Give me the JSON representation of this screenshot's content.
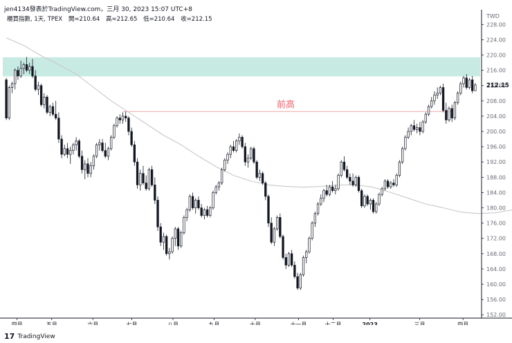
{
  "header": {
    "author_line": "jen4134發表於TradingView.com，三月 30, 2023 15:07 UTC+8"
  },
  "legend": {
    "symbol": "櫃買指數, 1天, TPEX",
    "open_label": "開=210.64",
    "high_label": "高=212.65",
    "low_label": "低=210.64",
    "close_label": "收=212.15"
  },
  "footer": {
    "logo_glyph": "𝟭𝟳",
    "brand": "TradingView"
  },
  "colors": {
    "up": "#131722",
    "down": "#131722",
    "zone": "#c7ebe3",
    "resistance_line": "#f0a3a8",
    "annotation": "#e8636e",
    "ma": "#c8c8c8",
    "axis_text": "#6a6d78"
  },
  "chart_data": {
    "type": "candlestick",
    "currency_label": "TWD",
    "current_price_label": "212.15",
    "y_ticks": [
      228,
      224,
      220,
      216,
      212,
      208,
      204,
      200,
      196,
      192,
      188,
      184,
      180,
      176,
      172,
      168,
      164,
      160,
      156,
      152
    ],
    "ylim": [
      151.5,
      231.5
    ],
    "x_ticks": [
      "四月",
      "五月",
      "六月",
      "七月",
      "八月",
      "九月",
      "十月",
      "十一月",
      "十二月",
      "2023",
      "三月",
      "四月"
    ],
    "annotation": {
      "text": "前高",
      "price": 205.2
    },
    "zone": {
      "top": 219.4,
      "bottom": 214.4
    },
    "ma_series": [
      [
        0,
        224.5
      ],
      [
        6,
        222.5
      ],
      [
        12,
        219.8
      ],
      [
        18,
        217.5
      ],
      [
        24,
        215
      ],
      [
        30,
        211.5
      ],
      [
        36,
        208
      ],
      [
        42,
        205
      ],
      [
        48,
        202
      ],
      [
        54,
        199
      ],
      [
        60,
        196.5
      ],
      [
        66,
        193.5
      ],
      [
        72,
        190.8
      ],
      [
        78,
        188.5
      ],
      [
        84,
        187
      ],
      [
        90,
        186
      ],
      [
        96,
        185.6
      ],
      [
        102,
        185.4
      ],
      [
        108,
        185.6
      ],
      [
        114,
        186
      ],
      [
        120,
        186
      ],
      [
        126,
        185.4
      ],
      [
        132,
        184
      ],
      [
        138,
        182.5
      ],
      [
        144,
        181
      ],
      [
        150,
        180
      ],
      [
        156,
        178.9
      ],
      [
        162,
        178.5
      ],
      [
        168,
        178.7
      ],
      [
        174,
        179.5
      ],
      [
        180,
        181
      ],
      [
        186,
        183.5
      ],
      [
        192,
        186.5
      ],
      [
        198,
        189.5
      ],
      [
        204,
        192.3
      ],
      [
        210,
        194.5
      ],
      [
        214,
        196
      ],
      [
        218,
        197.5
      ],
      [
        222,
        199.5
      ]
    ],
    "candles": [
      {
        "o": 213.5,
        "h": 214.0,
        "l": 203.0,
        "c": 203.5
      },
      {
        "o": 203.5,
        "h": 212.0,
        "l": 203.0,
        "c": 211.5
      },
      {
        "o": 211.5,
        "h": 213.0,
        "l": 210.0,
        "c": 212.5
      },
      {
        "o": 212.5,
        "h": 216.5,
        "l": 211.0,
        "c": 216.0
      },
      {
        "o": 216.0,
        "h": 217.0,
        "l": 213.5,
        "c": 214.5
      },
      {
        "o": 214.5,
        "h": 218.5,
        "l": 214.0,
        "c": 216.5
      },
      {
        "o": 216.5,
        "h": 218.0,
        "l": 215.0,
        "c": 217.5
      },
      {
        "o": 217.5,
        "h": 219.5,
        "l": 215.5,
        "c": 216.0
      },
      {
        "o": 216.0,
        "h": 218.0,
        "l": 215.0,
        "c": 217.0
      },
      {
        "o": 217.0,
        "h": 219.0,
        "l": 214.0,
        "c": 214.5
      },
      {
        "o": 214.5,
        "h": 216.0,
        "l": 210.5,
        "c": 211.0
      },
      {
        "o": 211.0,
        "h": 213.0,
        "l": 209.5,
        "c": 212.0
      },
      {
        "o": 212.0,
        "h": 212.5,
        "l": 206.5,
        "c": 207.0
      },
      {
        "o": 207.0,
        "h": 210.0,
        "l": 206.0,
        "c": 209.0
      },
      {
        "o": 209.0,
        "h": 209.5,
        "l": 204.5,
        "c": 205.0
      },
      {
        "o": 205.0,
        "h": 207.0,
        "l": 204.0,
        "c": 206.5
      },
      {
        "o": 206.5,
        "h": 207.5,
        "l": 204.0,
        "c": 204.5
      },
      {
        "o": 204.5,
        "h": 208.0,
        "l": 203.0,
        "c": 203.5
      },
      {
        "o": 203.5,
        "h": 205.0,
        "l": 197.0,
        "c": 198.0
      },
      {
        "o": 198.0,
        "h": 199.0,
        "l": 193.0,
        "c": 194.0
      },
      {
        "o": 194.0,
        "h": 196.5,
        "l": 193.5,
        "c": 195.5
      },
      {
        "o": 195.5,
        "h": 197.0,
        "l": 193.0,
        "c": 194.0
      },
      {
        "o": 194.0,
        "h": 196.0,
        "l": 191.5,
        "c": 195.0
      },
      {
        "o": 195.0,
        "h": 197.0,
        "l": 194.0,
        "c": 196.5
      },
      {
        "o": 196.5,
        "h": 198.5,
        "l": 195.0,
        "c": 197.5
      },
      {
        "o": 197.5,
        "h": 198.0,
        "l": 193.0,
        "c": 193.5
      },
      {
        "o": 193.5,
        "h": 195.0,
        "l": 189.0,
        "c": 190.0
      },
      {
        "o": 190.0,
        "h": 192.5,
        "l": 187.5,
        "c": 191.5
      },
      {
        "o": 191.5,
        "h": 193.0,
        "l": 188.0,
        "c": 189.0
      },
      {
        "o": 189.0,
        "h": 192.0,
        "l": 188.0,
        "c": 191.0
      },
      {
        "o": 191.0,
        "h": 194.0,
        "l": 190.0,
        "c": 193.5
      },
      {
        "o": 193.5,
        "h": 197.0,
        "l": 193.0,
        "c": 196.5
      },
      {
        "o": 196.5,
        "h": 198.0,
        "l": 195.0,
        "c": 197.0
      },
      {
        "o": 197.0,
        "h": 198.0,
        "l": 194.5,
        "c": 195.0
      },
      {
        "o": 195.0,
        "h": 197.0,
        "l": 193.0,
        "c": 193.5
      },
      {
        "o": 193.5,
        "h": 196.0,
        "l": 192.5,
        "c": 195.5
      },
      {
        "o": 195.5,
        "h": 199.0,
        "l": 195.0,
        "c": 198.5
      },
      {
        "o": 198.5,
        "h": 202.0,
        "l": 198.0,
        "c": 201.5
      },
      {
        "o": 201.5,
        "h": 204.0,
        "l": 201.0,
        "c": 203.5
      },
      {
        "o": 203.5,
        "h": 204.5,
        "l": 202.0,
        "c": 203.0
      },
      {
        "o": 203.0,
        "h": 205.0,
        "l": 202.0,
        "c": 204.0
      },
      {
        "o": 204.0,
        "h": 205.2,
        "l": 202.5,
        "c": 203.5
      },
      {
        "o": 203.5,
        "h": 204.0,
        "l": 199.0,
        "c": 200.0
      },
      {
        "o": 200.0,
        "h": 201.0,
        "l": 196.0,
        "c": 196.5
      },
      {
        "o": 196.5,
        "h": 197.5,
        "l": 191.0,
        "c": 192.0
      },
      {
        "o": 192.0,
        "h": 193.0,
        "l": 185.0,
        "c": 186.0
      },
      {
        "o": 186.0,
        "h": 190.0,
        "l": 184.5,
        "c": 189.0
      },
      {
        "o": 189.0,
        "h": 191.0,
        "l": 186.0,
        "c": 186.5
      },
      {
        "o": 186.5,
        "h": 188.5,
        "l": 184.5,
        "c": 185.0
      },
      {
        "o": 185.0,
        "h": 190.5,
        "l": 184.5,
        "c": 190.0
      },
      {
        "o": 190.0,
        "h": 191.0,
        "l": 185.5,
        "c": 186.0
      },
      {
        "o": 186.0,
        "h": 188.0,
        "l": 181.0,
        "c": 182.0
      },
      {
        "o": 182.0,
        "h": 183.0,
        "l": 174.0,
        "c": 175.0
      },
      {
        "o": 175.0,
        "h": 176.0,
        "l": 170.0,
        "c": 171.0
      },
      {
        "o": 171.0,
        "h": 173.5,
        "l": 169.0,
        "c": 172.5
      },
      {
        "o": 172.5,
        "h": 173.0,
        "l": 167.5,
        "c": 168.0
      },
      {
        "o": 168.0,
        "h": 169.5,
        "l": 166.5,
        "c": 168.5
      },
      {
        "o": 168.5,
        "h": 172.5,
        "l": 168.0,
        "c": 172.0
      },
      {
        "o": 172.0,
        "h": 175.0,
        "l": 170.0,
        "c": 174.5
      },
      {
        "o": 174.5,
        "h": 175.0,
        "l": 169.0,
        "c": 170.0
      },
      {
        "o": 170.0,
        "h": 174.0,
        "l": 169.5,
        "c": 173.5
      },
      {
        "o": 173.5,
        "h": 178.0,
        "l": 173.0,
        "c": 177.5
      },
      {
        "o": 177.5,
        "h": 180.0,
        "l": 176.5,
        "c": 179.5
      },
      {
        "o": 179.5,
        "h": 183.5,
        "l": 179.0,
        "c": 183.0
      },
      {
        "o": 183.0,
        "h": 184.0,
        "l": 179.5,
        "c": 180.0
      },
      {
        "o": 180.0,
        "h": 182.5,
        "l": 178.5,
        "c": 182.0
      },
      {
        "o": 182.0,
        "h": 183.0,
        "l": 179.5,
        "c": 180.0
      },
      {
        "o": 180.0,
        "h": 181.0,
        "l": 177.5,
        "c": 178.0
      },
      {
        "o": 178.0,
        "h": 180.0,
        "l": 177.0,
        "c": 179.5
      },
      {
        "o": 179.5,
        "h": 180.5,
        "l": 177.5,
        "c": 178.0
      },
      {
        "o": 178.0,
        "h": 180.5,
        "l": 177.5,
        "c": 180.0
      },
      {
        "o": 180.0,
        "h": 184.5,
        "l": 179.5,
        "c": 184.0
      },
      {
        "o": 184.0,
        "h": 186.0,
        "l": 183.5,
        "c": 185.5
      },
      {
        "o": 185.5,
        "h": 187.0,
        "l": 184.5,
        "c": 186.5
      },
      {
        "o": 186.5,
        "h": 190.5,
        "l": 186.0,
        "c": 190.0
      },
      {
        "o": 190.0,
        "h": 193.0,
        "l": 189.5,
        "c": 192.5
      },
      {
        "o": 192.5,
        "h": 194.5,
        "l": 191.5,
        "c": 194.0
      },
      {
        "o": 194.0,
        "h": 196.5,
        "l": 193.0,
        "c": 196.0
      },
      {
        "o": 196.0,
        "h": 197.5,
        "l": 194.5,
        "c": 195.0
      },
      {
        "o": 195.0,
        "h": 198.0,
        "l": 194.5,
        "c": 197.5
      },
      {
        "o": 197.5,
        "h": 199.5,
        "l": 196.5,
        "c": 198.5
      },
      {
        "o": 198.5,
        "h": 199.0,
        "l": 195.5,
        "c": 196.0
      },
      {
        "o": 196.0,
        "h": 197.0,
        "l": 191.0,
        "c": 192.0
      },
      {
        "o": 192.0,
        "h": 194.0,
        "l": 190.5,
        "c": 193.0
      },
      {
        "o": 193.0,
        "h": 196.0,
        "l": 192.5,
        "c": 195.5
      },
      {
        "o": 195.5,
        "h": 196.0,
        "l": 191.5,
        "c": 192.0
      },
      {
        "o": 192.0,
        "h": 192.5,
        "l": 187.5,
        "c": 188.0
      },
      {
        "o": 188.0,
        "h": 190.0,
        "l": 187.0,
        "c": 189.0
      },
      {
        "o": 189.0,
        "h": 189.5,
        "l": 186.0,
        "c": 186.5
      },
      {
        "o": 186.5,
        "h": 187.0,
        "l": 182.0,
        "c": 183.0
      },
      {
        "o": 183.0,
        "h": 183.5,
        "l": 175.0,
        "c": 176.0
      },
      {
        "o": 176.0,
        "h": 177.5,
        "l": 170.5,
        "c": 171.0
      },
      {
        "o": 171.0,
        "h": 175.0,
        "l": 170.0,
        "c": 174.5
      },
      {
        "o": 174.5,
        "h": 178.0,
        "l": 174.0,
        "c": 177.5
      },
      {
        "o": 177.5,
        "h": 178.5,
        "l": 172.0,
        "c": 172.5
      },
      {
        "o": 172.5,
        "h": 173.0,
        "l": 166.5,
        "c": 167.0
      },
      {
        "o": 167.0,
        "h": 168.0,
        "l": 164.0,
        "c": 165.0
      },
      {
        "o": 165.0,
        "h": 168.5,
        "l": 164.5,
        "c": 168.0
      },
      {
        "o": 168.0,
        "h": 169.0,
        "l": 164.5,
        "c": 165.0
      },
      {
        "o": 165.0,
        "h": 166.0,
        "l": 161.5,
        "c": 162.0
      },
      {
        "o": 162.0,
        "h": 163.0,
        "l": 158.5,
        "c": 159.0
      },
      {
        "o": 159.0,
        "h": 163.0,
        "l": 158.5,
        "c": 162.5
      },
      {
        "o": 162.5,
        "h": 167.5,
        "l": 162.0,
        "c": 167.0
      },
      {
        "o": 167.0,
        "h": 169.0,
        "l": 165.5,
        "c": 168.5
      },
      {
        "o": 168.5,
        "h": 172.5,
        "l": 168.0,
        "c": 172.0
      },
      {
        "o": 172.0,
        "h": 176.5,
        "l": 171.5,
        "c": 176.0
      },
      {
        "o": 176.0,
        "h": 179.0,
        "l": 175.0,
        "c": 178.5
      },
      {
        "o": 178.5,
        "h": 181.5,
        "l": 178.0,
        "c": 181.0
      },
      {
        "o": 181.0,
        "h": 183.5,
        "l": 180.5,
        "c": 182.5
      },
      {
        "o": 182.5,
        "h": 185.0,
        "l": 181.5,
        "c": 184.5
      },
      {
        "o": 184.5,
        "h": 186.0,
        "l": 183.0,
        "c": 183.5
      },
      {
        "o": 183.5,
        "h": 186.0,
        "l": 183.0,
        "c": 185.5
      },
      {
        "o": 185.5,
        "h": 187.0,
        "l": 184.0,
        "c": 184.5
      },
      {
        "o": 184.5,
        "h": 186.0,
        "l": 183.5,
        "c": 185.0
      },
      {
        "o": 185.0,
        "h": 189.0,
        "l": 184.5,
        "c": 188.5
      },
      {
        "o": 188.5,
        "h": 192.5,
        "l": 188.0,
        "c": 192.0
      },
      {
        "o": 192.0,
        "h": 193.5,
        "l": 189.5,
        "c": 190.0
      },
      {
        "o": 190.0,
        "h": 191.0,
        "l": 187.5,
        "c": 188.0
      },
      {
        "o": 188.0,
        "h": 189.0,
        "l": 186.0,
        "c": 187.0
      },
      {
        "o": 187.0,
        "h": 189.0,
        "l": 185.5,
        "c": 186.0
      },
      {
        "o": 186.0,
        "h": 188.5,
        "l": 185.5,
        "c": 188.0
      },
      {
        "o": 188.0,
        "h": 188.5,
        "l": 184.0,
        "c": 184.5
      },
      {
        "o": 184.5,
        "h": 185.0,
        "l": 180.0,
        "c": 180.5
      },
      {
        "o": 180.5,
        "h": 183.5,
        "l": 180.0,
        "c": 183.0
      },
      {
        "o": 183.0,
        "h": 183.5,
        "l": 180.5,
        "c": 181.0
      },
      {
        "o": 181.0,
        "h": 182.5,
        "l": 179.5,
        "c": 182.0
      },
      {
        "o": 182.0,
        "h": 182.5,
        "l": 178.5,
        "c": 179.0
      },
      {
        "o": 179.0,
        "h": 181.5,
        "l": 178.5,
        "c": 181.0
      },
      {
        "o": 181.0,
        "h": 184.0,
        "l": 180.5,
        "c": 183.5
      },
      {
        "o": 183.5,
        "h": 185.5,
        "l": 183.0,
        "c": 185.0
      },
      {
        "o": 185.0,
        "h": 187.5,
        "l": 184.5,
        "c": 187.0
      },
      {
        "o": 187.0,
        "h": 187.5,
        "l": 185.0,
        "c": 185.5
      },
      {
        "o": 185.5,
        "h": 187.0,
        "l": 185.0,
        "c": 186.5
      },
      {
        "o": 186.5,
        "h": 187.5,
        "l": 185.5,
        "c": 186.0
      },
      {
        "o": 186.0,
        "h": 189.0,
        "l": 185.5,
        "c": 188.5
      },
      {
        "o": 188.5,
        "h": 192.5,
        "l": 188.0,
        "c": 192.0
      },
      {
        "o": 192.0,
        "h": 196.0,
        "l": 191.5,
        "c": 195.5
      },
      {
        "o": 195.5,
        "h": 199.0,
        "l": 195.0,
        "c": 198.5
      },
      {
        "o": 198.5,
        "h": 201.0,
        "l": 198.0,
        "c": 200.0
      },
      {
        "o": 200.0,
        "h": 202.0,
        "l": 199.0,
        "c": 201.5
      },
      {
        "o": 201.5,
        "h": 203.0,
        "l": 200.0,
        "c": 200.5
      },
      {
        "o": 200.5,
        "h": 202.0,
        "l": 199.5,
        "c": 201.0
      },
      {
        "o": 201.0,
        "h": 202.5,
        "l": 199.0,
        "c": 200.0
      },
      {
        "o": 200.0,
        "h": 203.0,
        "l": 199.5,
        "c": 202.5
      },
      {
        "o": 202.5,
        "h": 205.0,
        "l": 202.0,
        "c": 204.5
      },
      {
        "o": 204.5,
        "h": 207.0,
        "l": 204.0,
        "c": 206.5
      },
      {
        "o": 206.5,
        "h": 209.0,
        "l": 206.0,
        "c": 208.0
      },
      {
        "o": 208.0,
        "h": 210.5,
        "l": 207.0,
        "c": 209.5
      },
      {
        "o": 209.5,
        "h": 211.5,
        "l": 208.5,
        "c": 210.0
      },
      {
        "o": 210.0,
        "h": 212.0,
        "l": 209.5,
        "c": 211.5
      },
      {
        "o": 211.5,
        "h": 212.5,
        "l": 205.0,
        "c": 205.5
      },
      {
        "o": 205.5,
        "h": 207.5,
        "l": 202.0,
        "c": 203.0
      },
      {
        "o": 203.0,
        "h": 206.5,
        "l": 202.5,
        "c": 206.0
      },
      {
        "o": 206.0,
        "h": 207.0,
        "l": 202.5,
        "c": 203.5
      },
      {
        "o": 203.5,
        "h": 208.0,
        "l": 203.0,
        "c": 207.5
      },
      {
        "o": 207.5,
        "h": 210.5,
        "l": 207.0,
        "c": 210.0
      },
      {
        "o": 210.0,
        "h": 213.0,
        "l": 209.5,
        "c": 212.5
      },
      {
        "o": 212.5,
        "h": 214.5,
        "l": 211.5,
        "c": 214.0
      },
      {
        "o": 214.0,
        "h": 215.0,
        "l": 211.0,
        "c": 211.5
      },
      {
        "o": 211.5,
        "h": 214.0,
        "l": 211.0,
        "c": 213.5
      },
      {
        "o": 213.5,
        "h": 214.5,
        "l": 210.0,
        "c": 210.64
      },
      {
        "o": 210.64,
        "h": 212.65,
        "l": 210.64,
        "c": 212.15
      }
    ]
  }
}
